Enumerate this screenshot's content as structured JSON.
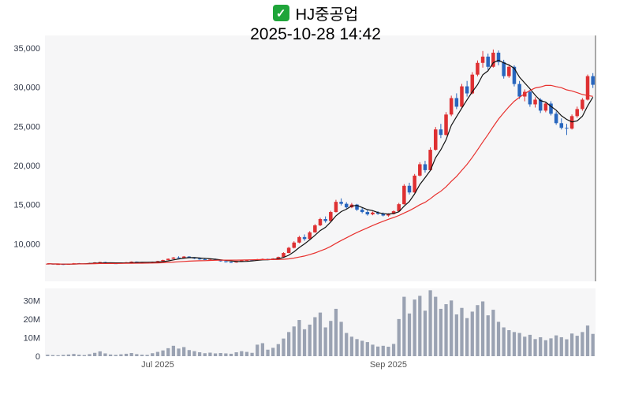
{
  "header": {
    "icon": {
      "name": "checkbox-checked-icon",
      "glyph": "✓",
      "color": "#1fa53a"
    },
    "title": "HJ중공업",
    "timestamp": "2025-10-28 14:42"
  },
  "chart_data": {
    "type": "candlestick",
    "title": "HJ중공업",
    "timestamp": "2025-10-28 14:42",
    "panels": [
      "price",
      "volume"
    ],
    "legend": "none",
    "grid": false,
    "price_axis": {
      "ticks": [
        10000,
        15000,
        20000,
        25000,
        30000,
        35000
      ],
      "tick_labels": [
        "10,000",
        "15,000",
        "20,000",
        "25,000",
        "30,000",
        "35,000"
      ],
      "ylim": [
        5200,
        36600
      ]
    },
    "volume_axis": {
      "ticks": [
        0,
        10000000,
        20000000,
        30000000
      ],
      "tick_labels": [
        "0",
        "10M",
        "20M",
        "30M"
      ],
      "ylim": [
        0,
        36500000
      ]
    },
    "x_axis": {
      "labels": [
        {
          "text": "Jul 2025",
          "index": 21
        },
        {
          "text": "Sep 2025",
          "index": 65
        }
      ]
    },
    "moving_averages": [
      {
        "period": 5,
        "color": "#111111"
      },
      {
        "period": 20,
        "color": "#e8312e"
      }
    ],
    "colors": {
      "up": "#de3032",
      "down": "#2866be",
      "volume_bar": "#9aa2b2",
      "plot_bg": "#f6f6f7",
      "axis_line": "#555555",
      "price_label": "#333a4a",
      "x_label": "#555555"
    },
    "candles": [
      [
        7420,
        7480,
        7360,
        7450,
        800000
      ],
      [
        7450,
        7470,
        7350,
        7380,
        600000
      ],
      [
        7380,
        7430,
        7340,
        7400,
        500000
      ],
      [
        7400,
        7410,
        7290,
        7330,
        700000
      ],
      [
        7330,
        7450,
        7310,
        7420,
        900000
      ],
      [
        7420,
        7530,
        7400,
        7500,
        1200000
      ],
      [
        7500,
        7540,
        7430,
        7470,
        800000
      ],
      [
        7470,
        7500,
        7390,
        7430,
        600000
      ],
      [
        7430,
        7560,
        7420,
        7530,
        1100000
      ],
      [
        7530,
        7650,
        7510,
        7610,
        1800000
      ],
      [
        7610,
        7700,
        7570,
        7660,
        2600000
      ],
      [
        7660,
        7690,
        7520,
        7550,
        1500000
      ],
      [
        7550,
        7590,
        7460,
        7500,
        900000
      ],
      [
        7500,
        7540,
        7440,
        7480,
        700000
      ],
      [
        7480,
        7600,
        7460,
        7560,
        1000000
      ],
      [
        7560,
        7660,
        7540,
        7630,
        1300000
      ],
      [
        7630,
        7740,
        7610,
        7710,
        1700000
      ],
      [
        7710,
        7730,
        7590,
        7640,
        1100000
      ],
      [
        7640,
        7680,
        7550,
        7600,
        800000
      ],
      [
        7600,
        7640,
        7530,
        7580,
        700000
      ],
      [
        7580,
        7720,
        7560,
        7690,
        1600000
      ],
      [
        7690,
        7820,
        7660,
        7780,
        2300000
      ],
      [
        7780,
        7960,
        7750,
        7920,
        3100000
      ],
      [
        7920,
        8120,
        7900,
        8080,
        4300000
      ],
      [
        8080,
        8300,
        8040,
        8240,
        5600000
      ],
      [
        8240,
        8390,
        8140,
        8200,
        4100000
      ],
      [
        8200,
        8430,
        8170,
        8360,
        4900000
      ],
      [
        8360,
        8410,
        8170,
        8230,
        3300000
      ],
      [
        8230,
        8280,
        8050,
        8100,
        2700000
      ],
      [
        8100,
        8160,
        7950,
        8010,
        2100000
      ],
      [
        8010,
        8090,
        7910,
        7960,
        1600000
      ],
      [
        7960,
        8120,
        7930,
        8070,
        1900000
      ],
      [
        8070,
        8100,
        7880,
        7930,
        1500000
      ],
      [
        7930,
        7960,
        7710,
        7760,
        1700000
      ],
      [
        7760,
        7800,
        7590,
        7650,
        1500000
      ],
      [
        7650,
        7720,
        7550,
        7600,
        1300000
      ],
      [
        7600,
        7790,
        7580,
        7740,
        2100000
      ],
      [
        7740,
        7910,
        7720,
        7860,
        2700000
      ],
      [
        7860,
        7950,
        7790,
        7900,
        2300000
      ],
      [
        7900,
        7980,
        7820,
        7870,
        1800000
      ],
      [
        7870,
        8060,
        7850,
        8010,
        6200000
      ],
      [
        8010,
        8110,
        7940,
        8060,
        7000000
      ],
      [
        8060,
        8090,
        7910,
        7960,
        3500000
      ],
      [
        7960,
        8150,
        7930,
        8110,
        4500000
      ],
      [
        8110,
        8360,
        8090,
        8300,
        6500000
      ],
      [
        8300,
        8910,
        8280,
        8820,
        9500000
      ],
      [
        8820,
        9610,
        8790,
        9480,
        13000000
      ],
      [
        9480,
        10310,
        9400,
        10150,
        16000000
      ],
      [
        10150,
        11010,
        10050,
        10850,
        19500000
      ],
      [
        10850,
        11190,
        10380,
        10600,
        14500000
      ],
      [
        10600,
        11610,
        10540,
        11450,
        17000000
      ],
      [
        11450,
        12510,
        11400,
        12350,
        21000000
      ],
      [
        12350,
        13310,
        12240,
        13150,
        23500000
      ],
      [
        13150,
        13490,
        12690,
        12900,
        15500000
      ],
      [
        12900,
        14210,
        12850,
        14050,
        19000000
      ],
      [
        14050,
        15610,
        13990,
        15350,
        25500000
      ],
      [
        15350,
        15790,
        14890,
        15100,
        18500000
      ],
      [
        15100,
        15310,
        14490,
        14650,
        12500000
      ],
      [
        14650,
        15210,
        14540,
        15000,
        10500000
      ],
      [
        15000,
        15090,
        14190,
        14350,
        9200000
      ],
      [
        14350,
        14590,
        13890,
        14050,
        8300000
      ],
      [
        14050,
        14290,
        13590,
        13750,
        7600000
      ],
      [
        13750,
        14110,
        13640,
        13980,
        6200000
      ],
      [
        13980,
        14160,
        13690,
        13820,
        5200000
      ],
      [
        13820,
        13990,
        13490,
        13600,
        5600000
      ],
      [
        13600,
        13890,
        13440,
        13800,
        5100000
      ],
      [
        13800,
        14260,
        13740,
        14150,
        6600000
      ],
      [
        14150,
        15210,
        14090,
        15050,
        20000000
      ],
      [
        15050,
        17610,
        14990,
        17400,
        32000000
      ],
      [
        17400,
        17790,
        16290,
        16550,
        23000000
      ],
      [
        16550,
        18910,
        16490,
        18700,
        30500000
      ],
      [
        18700,
        20410,
        18590,
        20150,
        32500000
      ],
      [
        20150,
        20590,
        19090,
        19400,
        24500000
      ],
      [
        19400,
        22310,
        19290,
        22000,
        35500000
      ],
      [
        22000,
        24910,
        21890,
        24600,
        32000000
      ],
      [
        24600,
        25310,
        23490,
        23900,
        25500000
      ],
      [
        23900,
        26810,
        23790,
        26500,
        28000000
      ],
      [
        26500,
        28910,
        26290,
        28600,
        30000000
      ],
      [
        28600,
        29210,
        27190,
        27500,
        22500000
      ],
      [
        27500,
        30410,
        27390,
        30100,
        26000000
      ],
      [
        30100,
        30790,
        28790,
        29200,
        20500000
      ],
      [
        29200,
        31910,
        29090,
        31600,
        24000000
      ],
      [
        31600,
        33410,
        31390,
        33100,
        27500000
      ],
      [
        33100,
        34610,
        32490,
        33900,
        29500000
      ],
      [
        33900,
        34290,
        32190,
        32600,
        22000000
      ],
      [
        32600,
        34810,
        32490,
        34400,
        25000000
      ],
      [
        34400,
        34690,
        32790,
        33200,
        18500000
      ],
      [
        33200,
        33490,
        31090,
        31400,
        15500000
      ],
      [
        31400,
        32910,
        31190,
        32600,
        14000000
      ],
      [
        32600,
        32790,
        30090,
        30400,
        13000000
      ],
      [
        30400,
        30790,
        28490,
        28800,
        12500000
      ],
      [
        28800,
        29710,
        28190,
        29400,
        10500000
      ],
      [
        29400,
        29590,
        27490,
        27800,
        11500000
      ],
      [
        27800,
        28710,
        27390,
        28400,
        9200000
      ],
      [
        28400,
        28590,
        26690,
        27000,
        10200000
      ],
      [
        27000,
        28110,
        26790,
        27900,
        8600000
      ],
      [
        27900,
        28190,
        26390,
        26600,
        9600000
      ],
      [
        26600,
        26890,
        25190,
        25400,
        11200000
      ],
      [
        25400,
        26010,
        24590,
        24800,
        10200000
      ],
      [
        24800,
        25310,
        23890,
        24700,
        9100000
      ],
      [
        24700,
        26510,
        24590,
        26300,
        12200000
      ],
      [
        26300,
        27510,
        26090,
        27200,
        11000000
      ],
      [
        27200,
        28610,
        26990,
        28400,
        13000000
      ],
      [
        28400,
        31610,
        28290,
        31400,
        16500000
      ],
      [
        31400,
        31790,
        29890,
        30300,
        12000000
      ]
    ]
  }
}
